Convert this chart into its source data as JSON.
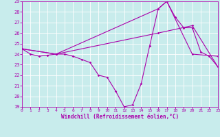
{
  "xlabel": "Windchill (Refroidissement éolien,°C)",
  "xlim": [
    0,
    23
  ],
  "ylim": [
    19,
    29
  ],
  "xticks": [
    0,
    1,
    2,
    3,
    4,
    5,
    6,
    7,
    8,
    9,
    10,
    11,
    12,
    13,
    14,
    15,
    16,
    17,
    18,
    19,
    20,
    21,
    22,
    23
  ],
  "yticks": [
    19,
    20,
    21,
    22,
    23,
    24,
    25,
    26,
    27,
    28,
    29
  ],
  "bg_color": "#c8ecec",
  "line_color": "#aa00aa",
  "grid_color": "#ffffff",
  "line1_x": [
    0,
    1,
    2,
    3,
    4,
    5,
    6,
    7,
    8,
    9,
    10,
    11,
    12,
    13,
    14,
    15,
    16,
    17,
    18,
    19,
    20,
    21,
    22,
    23
  ],
  "line1_y": [
    24.5,
    24.0,
    23.8,
    23.9,
    24.0,
    24.0,
    23.8,
    23.5,
    23.2,
    22.0,
    21.8,
    20.5,
    19.0,
    19.2,
    21.2,
    24.8,
    28.3,
    29.0,
    27.5,
    26.5,
    26.5,
    24.2,
    23.8,
    22.8
  ],
  "line2_x": [
    0,
    4,
    16,
    17,
    20,
    23
  ],
  "line2_y": [
    24.5,
    24.0,
    28.3,
    29.0,
    24.0,
    23.8
  ],
  "line3_x": [
    0,
    4,
    16,
    20,
    23
  ],
  "line3_y": [
    24.5,
    24.0,
    26.0,
    26.7,
    22.8
  ]
}
